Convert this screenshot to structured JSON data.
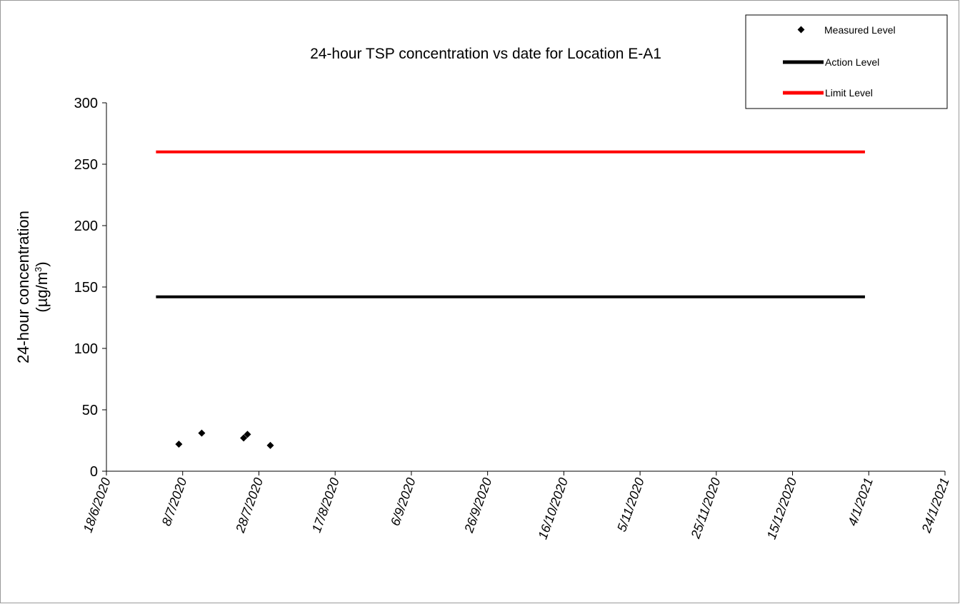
{
  "chart_data": {
    "type": "scatter",
    "title": "24-hour TSP concentration vs date for Location E-A1",
    "ylabel_line1": "24-hour concentration",
    "ylabel_line2_prefix": "(µg/m",
    "ylabel_line2_sup": "3",
    "ylabel_line2_suffix": ")",
    "xlabel": "",
    "x_axis": {
      "type": "date",
      "min": "2020-06-18",
      "max": "2021-01-24",
      "tick_dates": [
        "2020-06-18",
        "2020-07-08",
        "2020-07-28",
        "2020-08-17",
        "2020-09-06",
        "2020-09-26",
        "2020-10-16",
        "2020-11-05",
        "2020-11-25",
        "2020-12-15",
        "2021-01-04",
        "2021-01-24"
      ],
      "tick_labels": [
        "18/6/2020",
        "8/7/2020",
        "28/7/2020",
        "17/8/2020",
        "6/9/2020",
        "26/9/2020",
        "16/10/2020",
        "5/11/2020",
        "25/11/2020",
        "15/12/2020",
        "4/1/2021",
        "24/1/2021"
      ]
    },
    "y_axis": {
      "min": 0,
      "max": 300,
      "ticks": [
        0,
        50,
        100,
        150,
        200,
        250,
        300
      ]
    },
    "grid": false,
    "legend_placement": "top-right",
    "series": [
      {
        "name": "Measured Level",
        "kind": "points",
        "marker": "diamond",
        "color": "#000000",
        "points": [
          {
            "x": "2020-07-07",
            "y": 22
          },
          {
            "x": "2020-07-13",
            "y": 31
          },
          {
            "x": "2020-07-24",
            "y": 27
          },
          {
            "x": "2020-07-25",
            "y": 30
          },
          {
            "x": "2020-07-31",
            "y": 21
          }
        ]
      },
      {
        "name": "Action Level",
        "kind": "line",
        "color": "#000000",
        "points": [
          {
            "x": "2020-07-01",
            "y": 142
          },
          {
            "x": "2021-01-03",
            "y": 142
          }
        ]
      },
      {
        "name": "Limit Level",
        "kind": "line",
        "color": "#ff0000",
        "points": [
          {
            "x": "2020-07-01",
            "y": 260
          },
          {
            "x": "2021-01-03",
            "y": 260
          }
        ]
      }
    ]
  }
}
